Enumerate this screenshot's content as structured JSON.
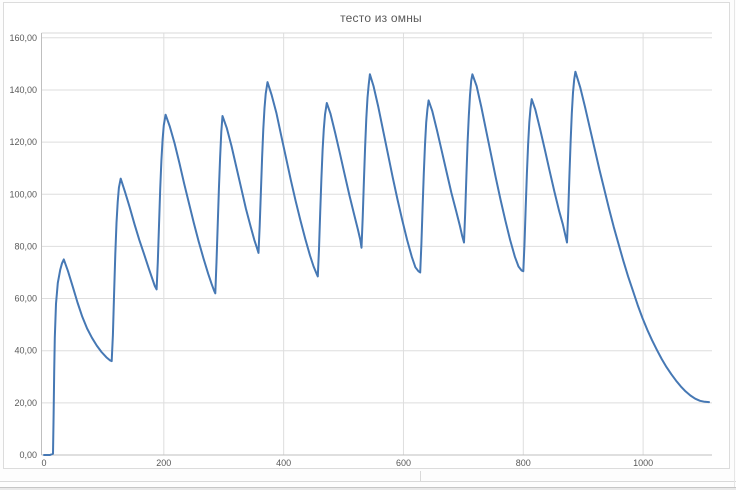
{
  "app": {
    "context_note": "chart object over spreadsheet cells"
  },
  "chart_data": {
    "type": "line",
    "title": "тесто из омны",
    "xlabel": "",
    "ylabel": "",
    "legend_position": "none",
    "grid": true,
    "x_axis": {
      "min": 0,
      "max": 1115,
      "tick_values": [
        0,
        200,
        400,
        600,
        800,
        1000
      ],
      "tick_labels": [
        "0",
        "200",
        "400",
        "600",
        "800",
        "1000"
      ]
    },
    "y_axis": {
      "min": 0,
      "max": 160,
      "tick_values": [
        0,
        20,
        40,
        60,
        80,
        100,
        120,
        140,
        160
      ],
      "tick_labels": [
        "0,00",
        "20,00",
        "40,00",
        "60,00",
        "80,00",
        "100,00",
        "120,00",
        "140,00",
        "160,00"
      ]
    },
    "colors": {
      "line": "#4678b4",
      "grid": "#dedede",
      "axis": "#bfbfbf",
      "plot_border": "#d9d9d9",
      "text": "#595959"
    },
    "series": [
      {
        "points": [
          [
            0,
            0
          ],
          [
            10,
            0
          ],
          [
            15,
            0.5
          ],
          [
            16,
            15
          ],
          [
            17,
            32
          ],
          [
            18,
            45
          ],
          [
            20,
            58
          ],
          [
            23,
            66
          ],
          [
            27,
            71
          ],
          [
            30,
            73.5
          ],
          [
            33,
            75
          ],
          [
            40,
            70.5
          ],
          [
            48,
            64.5
          ],
          [
            56,
            58.5
          ],
          [
            64,
            53
          ],
          [
            72,
            48.5
          ],
          [
            80,
            45
          ],
          [
            88,
            42
          ],
          [
            96,
            39.5
          ],
          [
            104,
            37.5
          ],
          [
            110,
            36.3
          ],
          [
            113,
            36
          ],
          [
            115,
            46
          ],
          [
            117,
            62
          ],
          [
            119,
            77
          ],
          [
            121,
            89
          ],
          [
            123,
            97
          ],
          [
            125,
            102.5
          ],
          [
            128,
            106
          ],
          [
            135,
            101
          ],
          [
            143,
            95
          ],
          [
            151,
            88.5
          ],
          [
            159,
            82.5
          ],
          [
            167,
            77
          ],
          [
            175,
            71.5
          ],
          [
            181,
            67.5
          ],
          [
            185,
            64.8
          ],
          [
            188,
            63.5
          ],
          [
            190,
            74
          ],
          [
            192,
            88
          ],
          [
            194,
            102
          ],
          [
            196,
            113
          ],
          [
            198,
            121
          ],
          [
            200,
            126.5
          ],
          [
            203,
            130.5
          ],
          [
            210,
            126
          ],
          [
            218,
            119.5
          ],
          [
            226,
            112
          ],
          [
            234,
            104
          ],
          [
            242,
            96.5
          ],
          [
            250,
            89
          ],
          [
            258,
            82
          ],
          [
            266,
            75.5
          ],
          [
            274,
            69.5
          ],
          [
            280,
            65.5
          ],
          [
            284,
            63
          ],
          [
            286,
            62
          ],
          [
            288,
            74
          ],
          [
            290,
            88
          ],
          [
            292,
            102
          ],
          [
            294,
            114
          ],
          [
            296,
            124
          ],
          [
            298,
            130
          ],
          [
            305,
            125.5
          ],
          [
            313,
            118.5
          ],
          [
            321,
            110.5
          ],
          [
            329,
            102.5
          ],
          [
            337,
            94.5
          ],
          [
            345,
            87.5
          ],
          [
            351,
            82.5
          ],
          [
            356,
            79
          ],
          [
            358,
            77.5
          ],
          [
            360,
            88
          ],
          [
            362,
            101
          ],
          [
            364,
            114
          ],
          [
            366,
            125
          ],
          [
            368,
            133
          ],
          [
            370,
            138.5
          ],
          [
            373,
            143
          ],
          [
            380,
            138
          ],
          [
            388,
            131
          ],
          [
            396,
            122.5
          ],
          [
            404,
            114
          ],
          [
            412,
            105.5
          ],
          [
            420,
            97.5
          ],
          [
            428,
            90
          ],
          [
            436,
            83
          ],
          [
            444,
            76.5
          ],
          [
            450,
            72.3
          ],
          [
            455,
            69.5
          ],
          [
            457,
            68.5
          ],
          [
            459,
            79
          ],
          [
            461,
            93
          ],
          [
            463,
            106
          ],
          [
            465,
            117
          ],
          [
            467,
            125
          ],
          [
            469,
            130.5
          ],
          [
            472,
            135
          ],
          [
            478,
            131
          ],
          [
            486,
            123.5
          ],
          [
            494,
            115.5
          ],
          [
            502,
            107.5
          ],
          [
            510,
            99.5
          ],
          [
            518,
            92
          ],
          [
            524,
            86.5
          ],
          [
            528,
            82.5
          ],
          [
            530,
            79.5
          ],
          [
            532,
            91
          ],
          [
            534,
            105
          ],
          [
            536,
            118
          ],
          [
            538,
            129
          ],
          [
            540,
            137
          ],
          [
            542,
            142
          ],
          [
            544,
            146
          ],
          [
            550,
            141.5
          ],
          [
            558,
            133.5
          ],
          [
            566,
            124.5
          ],
          [
            574,
            115.5
          ],
          [
            582,
            106.5
          ],
          [
            590,
            98
          ],
          [
            598,
            90
          ],
          [
            606,
            82.5
          ],
          [
            614,
            76
          ],
          [
            620,
            72
          ],
          [
            625,
            70.5
          ],
          [
            628,
            70
          ],
          [
            630,
            81
          ],
          [
            632,
            95
          ],
          [
            634,
            108
          ],
          [
            636,
            119
          ],
          [
            638,
            127.5
          ],
          [
            640,
            132.5
          ],
          [
            642,
            136
          ],
          [
            648,
            132
          ],
          [
            656,
            124.5
          ],
          [
            664,
            116.5
          ],
          [
            672,
            108.5
          ],
          [
            680,
            100.5
          ],
          [
            688,
            93.5
          ],
          [
            694,
            88
          ],
          [
            698,
            84
          ],
          [
            701,
            81.5
          ],
          [
            703,
            93
          ],
          [
            705,
            107
          ],
          [
            707,
            120
          ],
          [
            709,
            130
          ],
          [
            711,
            138
          ],
          [
            713,
            143.5
          ],
          [
            715,
            146
          ],
          [
            722,
            141.5
          ],
          [
            730,
            133.5
          ],
          [
            738,
            124.5
          ],
          [
            746,
            115.5
          ],
          [
            754,
            106.5
          ],
          [
            762,
            98
          ],
          [
            770,
            90
          ],
          [
            778,
            82.5
          ],
          [
            786,
            76
          ],
          [
            792,
            72.3
          ],
          [
            797,
            70.8
          ],
          [
            800,
            70.5
          ],
          [
            802,
            81
          ],
          [
            804,
            95
          ],
          [
            806,
            108
          ],
          [
            808,
            119
          ],
          [
            810,
            127.5
          ],
          [
            812,
            133
          ],
          [
            814,
            136.5
          ],
          [
            820,
            132.5
          ],
          [
            828,
            125
          ],
          [
            836,
            117
          ],
          [
            844,
            109
          ],
          [
            852,
            101
          ],
          [
            860,
            93.5
          ],
          [
            866,
            88.5
          ],
          [
            870,
            84.5
          ],
          [
            873,
            81.5
          ],
          [
            875,
            93
          ],
          [
            877,
            107
          ],
          [
            879,
            120
          ],
          [
            881,
            131
          ],
          [
            883,
            139
          ],
          [
            885,
            144
          ],
          [
            887,
            147
          ],
          [
            895,
            141
          ],
          [
            903,
            133.5
          ],
          [
            911,
            125.5
          ],
          [
            919,
            117.5
          ],
          [
            927,
            109.5
          ],
          [
            935,
            102
          ],
          [
            943,
            94.5
          ],
          [
            951,
            87.5
          ],
          [
            959,
            81
          ],
          [
            967,
            74.5
          ],
          [
            975,
            68.5
          ],
          [
            983,
            63
          ],
          [
            991,
            57.5
          ],
          [
            999,
            52.5
          ],
          [
            1007,
            48
          ],
          [
            1015,
            44
          ],
          [
            1023,
            40.3
          ],
          [
            1031,
            36.8
          ],
          [
            1039,
            33.7
          ],
          [
            1047,
            31
          ],
          [
            1055,
            28.5
          ],
          [
            1063,
            26.3
          ],
          [
            1071,
            24.4
          ],
          [
            1079,
            22.8
          ],
          [
            1087,
            21.6
          ],
          [
            1095,
            20.8
          ],
          [
            1103,
            20.4
          ],
          [
            1110,
            20.3
          ]
        ]
      }
    ]
  }
}
